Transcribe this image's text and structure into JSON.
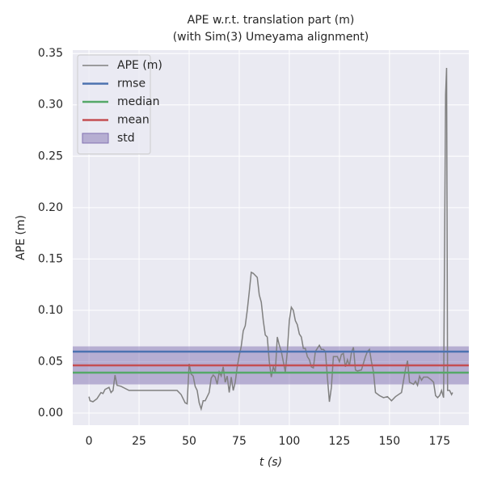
{
  "chart_data": {
    "type": "line",
    "title": "APE w.r.t. translation part (m)",
    "subtitle": "(with Sim(3) Umeyama alignment)",
    "x_label": "t (s)",
    "y_label": "APE (m)",
    "xlim": [
      -8.1,
      189.6
    ],
    "ylim": [
      -0.0118,
      0.3533
    ],
    "xticks": [
      0,
      25,
      50,
      75,
      100,
      125,
      150,
      175
    ],
    "yticks": [
      {
        "value": 0,
        "label": "0.00"
      },
      {
        "value": 0.05,
        "label": "0.05"
      },
      {
        "value": 0.1,
        "label": "0.10"
      },
      {
        "value": 0.15,
        "label": "0.15"
      },
      {
        "value": 0.2,
        "label": "0.20"
      },
      {
        "value": 0.25,
        "label": "0.25"
      },
      {
        "value": 0.3,
        "label": "0.30"
      },
      {
        "value": 0.35,
        "label": "0.35"
      }
    ],
    "grid": true,
    "legend": "upper left",
    "series": [
      {
        "name": "APE (m)",
        "color": "#808080",
        "x": [
          0,
          0.5,
          2,
          4,
          6,
          7,
          8,
          10,
          11,
          12,
          13,
          14,
          16,
          20,
          30,
          44,
          46,
          48,
          49,
          50,
          51,
          52,
          53,
          54,
          55,
          56,
          57,
          58,
          60,
          61,
          62,
          63,
          64,
          65,
          66,
          67,
          68,
          69,
          70,
          71,
          72,
          73,
          74,
          75,
          76,
          77,
          78,
          79,
          80,
          81,
          82,
          84,
          85,
          86,
          87,
          88,
          89,
          90,
          91,
          92,
          93,
          94,
          95,
          96,
          97,
          98,
          99,
          100,
          101,
          102,
          103,
          104,
          105,
          106,
          107,
          108,
          109,
          110,
          111,
          112,
          113,
          114,
          115,
          116,
          117,
          118,
          119,
          120,
          121,
          122,
          124,
          125,
          126,
          127,
          128,
          129,
          130,
          131,
          132,
          133,
          134,
          136,
          138,
          139,
          140,
          141,
          142,
          143,
          145,
          147,
          149,
          151,
          153,
          156,
          158,
          159,
          160,
          162,
          163,
          164,
          165,
          166,
          167,
          169,
          171,
          172,
          173,
          174,
          175,
          176,
          177,
          178,
          178.5,
          179,
          180,
          181,
          181.5
        ],
        "values": [
          0.016,
          0.012,
          0.011,
          0.014,
          0.02,
          0.019,
          0.023,
          0.025,
          0.02,
          0.022,
          0.037,
          0.027,
          0.026,
          0.022,
          0.022,
          0.022,
          0.018,
          0.01,
          0.009,
          0.048,
          0.038,
          0.036,
          0.026,
          0.022,
          0.01,
          0.004,
          0.012,
          0.012,
          0.02,
          0.034,
          0.037,
          0.035,
          0.028,
          0.04,
          0.036,
          0.045,
          0.03,
          0.036,
          0.02,
          0.035,
          0.022,
          0.03,
          0.045,
          0.056,
          0.065,
          0.08,
          0.085,
          0.1,
          0.118,
          0.137,
          0.136,
          0.132,
          0.115,
          0.108,
          0.09,
          0.076,
          0.074,
          0.05,
          0.035,
          0.045,
          0.04,
          0.074,
          0.066,
          0.06,
          0.05,
          0.04,
          0.06,
          0.09,
          0.103,
          0.1,
          0.09,
          0.086,
          0.077,
          0.074,
          0.063,
          0.063,
          0.055,
          0.052,
          0.045,
          0.044,
          0.06,
          0.063,
          0.066,
          0.062,
          0.062,
          0.06,
          0.035,
          0.011,
          0.025,
          0.055,
          0.055,
          0.05,
          0.057,
          0.058,
          0.045,
          0.052,
          0.046,
          0.059,
          0.064,
          0.042,
          0.041,
          0.042,
          0.055,
          0.06,
          0.062,
          0.05,
          0.04,
          0.02,
          0.017,
          0.015,
          0.016,
          0.012,
          0.016,
          0.02,
          0.043,
          0.051,
          0.03,
          0.028,
          0.031,
          0.027,
          0.036,
          0.032,
          0.035,
          0.035,
          0.032,
          0.03,
          0.017,
          0.015,
          0.017,
          0.022,
          0.015,
          0.31,
          0.336,
          0.022,
          0.022,
          0.018,
          0.02
        ]
      }
    ],
    "reference_lines": [
      {
        "name": "rmse",
        "color": "#4c72b0",
        "value": 0.0598
      },
      {
        "name": "median",
        "color": "#55a868",
        "value": 0.0393
      },
      {
        "name": "mean",
        "color": "#c44e52",
        "value": 0.0464
      }
    ],
    "band": {
      "name": "std",
      "color": "#8172b2",
      "value": 0.0185
    }
  }
}
